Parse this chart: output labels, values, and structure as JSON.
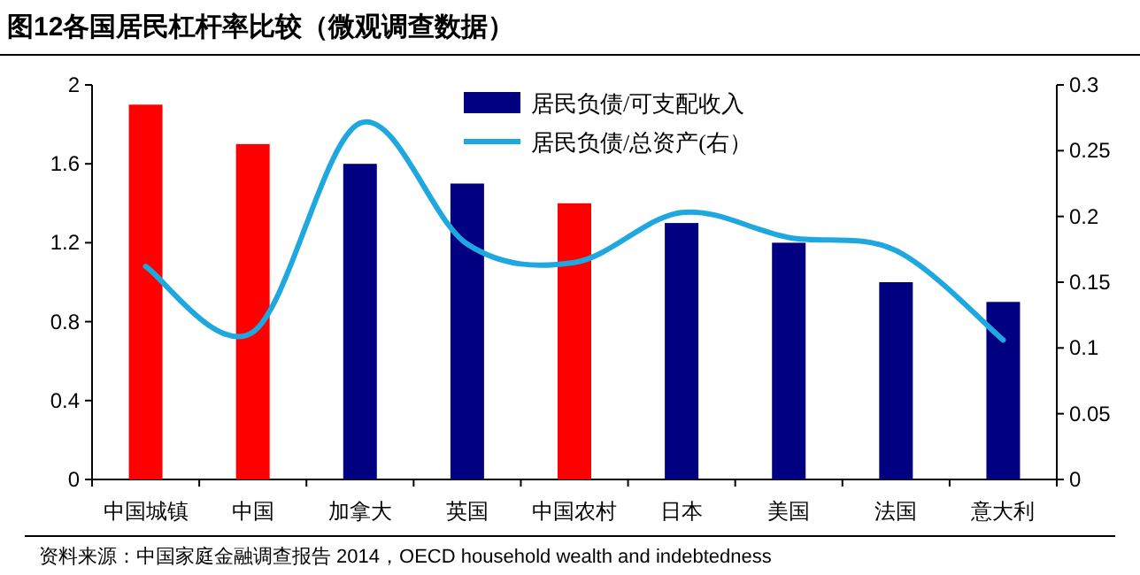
{
  "chart_data": {
    "type": "bar",
    "title": "图12各国居民杠杆率比较（微观调查数据）",
    "categories": [
      "中国城镇",
      "中国",
      "加拿大",
      "英国",
      "中国农村",
      "日本",
      "美国",
      "法国",
      "意大利"
    ],
    "series": [
      {
        "name": "居民负债/可支配收入",
        "color": "#000080",
        "colors": [
          "#ff0000",
          "#ff0000",
          "#000080",
          "#000080",
          "#ff0000",
          "#000080",
          "#000080",
          "#000080",
          "#000080"
        ],
        "values": [
          1.9,
          1.7,
          1.6,
          1.5,
          1.4,
          1.3,
          1.2,
          1.0,
          0.9
        ]
      },
      {
        "name": "居民负债/总资产(右）",
        "type": "line",
        "axis": "y2",
        "color": "#1fa8e0",
        "values": [
          0.162,
          0.112,
          0.271,
          0.179,
          0.165,
          0.203,
          0.184,
          0.174,
          0.106
        ]
      }
    ],
    "ylim": [
      0,
      2
    ],
    "yticks": [
      0,
      0.4,
      0.8,
      1.2,
      1.6,
      2
    ],
    "y2lim": [
      0,
      0.3
    ],
    "y2ticks": [
      0,
      0.05,
      0.1,
      0.15,
      0.2,
      0.25,
      0.3
    ],
    "legend": "top",
    "annotations": [
      "资料来源：中国家庭金融调查报告 2014，OECD household wealth and indebtedness"
    ]
  }
}
